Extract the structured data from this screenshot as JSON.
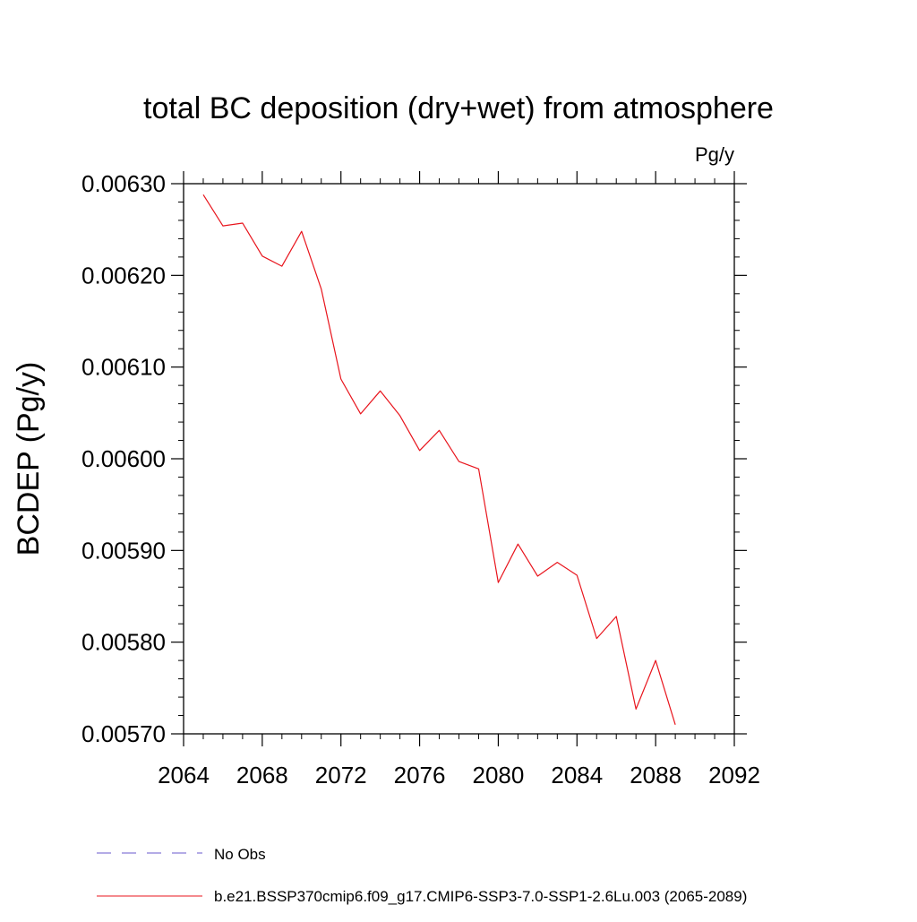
{
  "chart_data": {
    "type": "line",
    "title": "total BC deposition (dry+wet) from atmosphere",
    "units_label": "Pg/y",
    "ylabel": "BCDEP  (Pg/y)",
    "xlabel": "",
    "xlim": [
      2064,
      2092
    ],
    "ylim": [
      0.0057,
      0.0063
    ],
    "x_ticks": [
      2064,
      2068,
      2072,
      2076,
      2080,
      2084,
      2088,
      2092
    ],
    "x_tick_labels": [
      "2064",
      "2068",
      "2072",
      "2076",
      "2080",
      "2084",
      "2088",
      "2092"
    ],
    "y_ticks": [
      0.0057,
      0.0058,
      0.0059,
      0.006,
      0.0061,
      0.0062,
      0.0063
    ],
    "y_tick_labels": [
      "0.00570",
      "0.00580",
      "0.00590",
      "0.00600",
      "0.00610",
      "0.00620",
      "0.00630"
    ],
    "grid": false,
    "legend_position": "bottom",
    "legend": [
      {
        "label": "No Obs",
        "color": "#6a5acd",
        "style": "dashed"
      },
      {
        "label": "b.e21.BSSP370cmip6.f09_g17.CMIP6-SSP3-7.0-SSP1-2.6Lu.003 (2065-2089)",
        "color": "#e8141c",
        "style": "solid"
      }
    ],
    "series": [
      {
        "name": "b.e21.BSSP370cmip6.f09_g17.CMIP6-SSP3-7.0-SSP1-2.6Lu.003 (2065-2089)",
        "color": "#e8141c",
        "x": [
          2065,
          2066,
          2067,
          2068,
          2069,
          2070,
          2071,
          2072,
          2073,
          2074,
          2075,
          2076,
          2077,
          2078,
          2079,
          2080,
          2081,
          2082,
          2083,
          2084,
          2085,
          2086,
          2087,
          2088,
          2089
        ],
        "y": [
          0.006288,
          0.006254,
          0.006257,
          0.006221,
          0.00621,
          0.006248,
          0.006185,
          0.006087,
          0.006049,
          0.006074,
          0.006047,
          0.006009,
          0.006031,
          0.005997,
          0.005989,
          0.005865,
          0.005907,
          0.005872,
          0.005887,
          0.005873,
          0.005804,
          0.005828,
          0.005727,
          0.00578,
          0.00571
        ]
      }
    ]
  }
}
